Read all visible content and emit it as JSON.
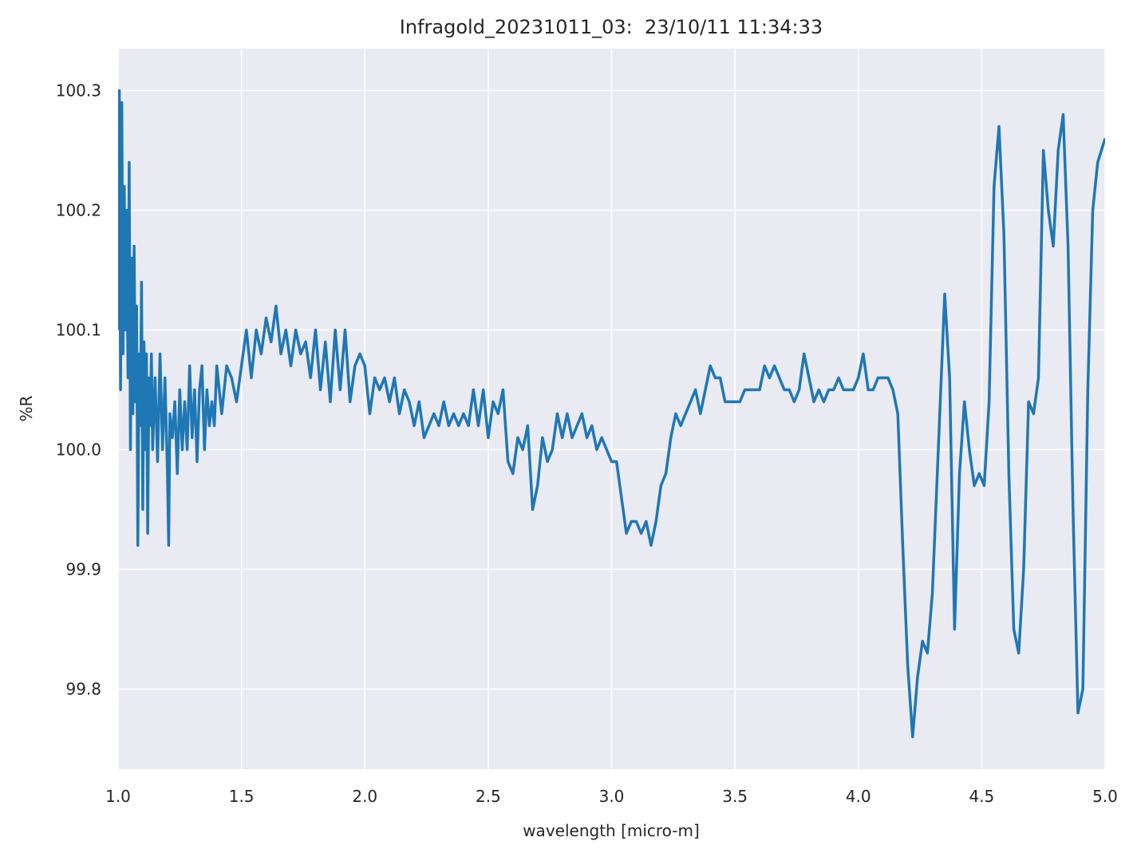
{
  "chart_data": {
    "type": "line",
    "title": "Infragold_20231011_03:  23/10/11 11:34:33",
    "x_label": "wavelength [micro-m]",
    "y_label": "%R",
    "color": "#1f77b4",
    "grid": true,
    "xlim": [
      1,
      5
    ],
    "ylim": [
      99.733,
      100.335
    ],
    "xticks": [
      {
        "value": 1,
        "label": "1.0"
      },
      1.5,
      {
        "value": 2,
        "label": "2.0"
      },
      2.5,
      {
        "value": 3,
        "label": "3.0"
      },
      3.5,
      {
        "value": 4,
        "label": "4.0"
      },
      4.5,
      {
        "value": 5,
        "label": "5.0"
      }
    ],
    "yticks": [
      99.8,
      99.9,
      {
        "value": 100,
        "label": "100.0"
      },
      100.1,
      100.2,
      100.3
    ],
    "x": [
      1.0,
      1.005,
      1.01,
      1.015,
      1.02,
      1.025,
      1.03,
      1.035,
      1.04,
      1.045,
      1.05,
      1.055,
      1.06,
      1.065,
      1.07,
      1.075,
      1.08,
      1.085,
      1.09,
      1.095,
      1.1,
      1.105,
      1.11,
      1.115,
      1.12,
      1.125,
      1.13,
      1.135,
      1.14,
      1.15,
      1.16,
      1.17,
      1.18,
      1.19,
      1.2,
      1.205,
      1.21,
      1.22,
      1.23,
      1.24,
      1.25,
      1.26,
      1.27,
      1.28,
      1.29,
      1.3,
      1.31,
      1.32,
      1.33,
      1.34,
      1.35,
      1.36,
      1.37,
      1.38,
      1.39,
      1.4,
      1.42,
      1.44,
      1.46,
      1.48,
      1.5,
      1.52,
      1.54,
      1.56,
      1.58,
      1.6,
      1.62,
      1.64,
      1.66,
      1.68,
      1.7,
      1.72,
      1.74,
      1.76,
      1.78,
      1.8,
      1.82,
      1.84,
      1.86,
      1.88,
      1.9,
      1.92,
      1.94,
      1.96,
      1.98,
      2.0,
      2.02,
      2.04,
      2.06,
      2.08,
      2.1,
      2.12,
      2.14,
      2.16,
      2.18,
      2.2,
      2.22,
      2.24,
      2.26,
      2.28,
      2.3,
      2.32,
      2.34,
      2.36,
      2.38,
      2.4,
      2.42,
      2.44,
      2.46,
      2.48,
      2.5,
      2.52,
      2.54,
      2.56,
      2.58,
      2.6,
      2.62,
      2.64,
      2.66,
      2.68,
      2.7,
      2.72,
      2.74,
      2.76,
      2.78,
      2.8,
      2.82,
      2.84,
      2.86,
      2.88,
      2.9,
      2.92,
      2.94,
      2.96,
      2.98,
      3.0,
      3.02,
      3.04,
      3.06,
      3.08,
      3.1,
      3.12,
      3.14,
      3.16,
      3.18,
      3.2,
      3.22,
      3.24,
      3.26,
      3.28,
      3.3,
      3.32,
      3.34,
      3.36,
      3.38,
      3.4,
      3.42,
      3.44,
      3.46,
      3.48,
      3.5,
      3.52,
      3.54,
      3.56,
      3.58,
      3.6,
      3.62,
      3.64,
      3.66,
      3.68,
      3.7,
      3.72,
      3.74,
      3.76,
      3.78,
      3.8,
      3.82,
      3.84,
      3.86,
      3.88,
      3.9,
      3.92,
      3.94,
      3.96,
      3.98,
      4.0,
      4.02,
      4.04,
      4.06,
      4.08,
      4.1,
      4.12,
      4.14,
      4.16,
      4.18,
      4.2,
      4.22,
      4.24,
      4.26,
      4.28,
      4.3,
      4.32,
      4.35,
      4.37,
      4.39,
      4.41,
      4.43,
      4.45,
      4.47,
      4.49,
      4.51,
      4.53,
      4.55,
      4.57,
      4.59,
      4.61,
      4.63,
      4.65,
      4.67,
      4.69,
      4.71,
      4.73,
      4.75,
      4.77,
      4.79,
      4.81,
      4.83,
      4.85,
      4.87,
      4.89,
      4.91,
      4.93,
      4.95,
      4.97,
      5.0
    ],
    "values": [
      100.1,
      100.3,
      100.05,
      100.29,
      100.08,
      100.22,
      100.1,
      100.2,
      100.06,
      100.24,
      100.0,
      100.16,
      100.03,
      100.17,
      100.04,
      100.12,
      99.92,
      100.08,
      100.02,
      100.14,
      99.95,
      100.09,
      100.0,
      100.08,
      99.93,
      100.06,
      100.02,
      100.08,
      100.0,
      100.06,
      99.99,
      100.08,
      100.0,
      100.06,
      99.98,
      99.92,
      100.03,
      100.01,
      100.04,
      99.98,
      100.05,
      100.0,
      100.04,
      100.0,
      100.07,
      100.01,
      100.05,
      99.99,
      100.05,
      100.07,
      100.0,
      100.05,
      100.02,
      100.04,
      100.02,
      100.07,
      100.03,
      100.07,
      100.06,
      100.04,
      100.07,
      100.1,
      100.06,
      100.1,
      100.08,
      100.11,
      100.09,
      100.12,
      100.08,
      100.1,
      100.07,
      100.1,
      100.08,
      100.09,
      100.06,
      100.1,
      100.05,
      100.09,
      100.04,
      100.1,
      100.05,
      100.1,
      100.04,
      100.07,
      100.08,
      100.07,
      100.03,
      100.06,
      100.05,
      100.06,
      100.04,
      100.06,
      100.03,
      100.05,
      100.04,
      100.02,
      100.04,
      100.01,
      100.02,
      100.03,
      100.02,
      100.04,
      100.02,
      100.03,
      100.02,
      100.03,
      100.02,
      100.05,
      100.02,
      100.05,
      100.01,
      100.04,
      100.03,
      100.05,
      99.99,
      99.98,
      100.01,
      100.0,
      100.02,
      99.95,
      99.97,
      100.01,
      99.99,
      100.0,
      100.03,
      100.01,
      100.03,
      100.01,
      100.02,
      100.03,
      100.01,
      100.02,
      100.0,
      100.01,
      100.0,
      99.99,
      99.99,
      99.96,
      99.93,
      99.94,
      99.94,
      99.93,
      99.94,
      99.92,
      99.94,
      99.97,
      99.98,
      100.01,
      100.03,
      100.02,
      100.03,
      100.04,
      100.05,
      100.03,
      100.05,
      100.07,
      100.06,
      100.06,
      100.04,
      100.04,
      100.04,
      100.04,
      100.05,
      100.05,
      100.05,
      100.05,
      100.07,
      100.06,
      100.07,
      100.06,
      100.05,
      100.05,
      100.04,
      100.05,
      100.08,
      100.06,
      100.04,
      100.05,
      100.04,
      100.05,
      100.05,
      100.06,
      100.05,
      100.05,
      100.05,
      100.06,
      100.08,
      100.05,
      100.05,
      100.06,
      100.06,
      100.06,
      100.05,
      100.03,
      99.92,
      99.82,
      99.76,
      99.81,
      99.84,
      99.83,
      99.88,
      99.98,
      100.13,
      100.06,
      99.85,
      99.98,
      100.04,
      100.0,
      99.97,
      99.98,
      99.97,
      100.04,
      100.22,
      100.27,
      100.18,
      99.98,
      99.85,
      99.83,
      99.9,
      100.04,
      100.03,
      100.06,
      100.25,
      100.2,
      100.17,
      100.25,
      100.28,
      100.17,
      99.95,
      99.78,
      99.8,
      100.05,
      100.2,
      100.24,
      100.26
    ]
  }
}
